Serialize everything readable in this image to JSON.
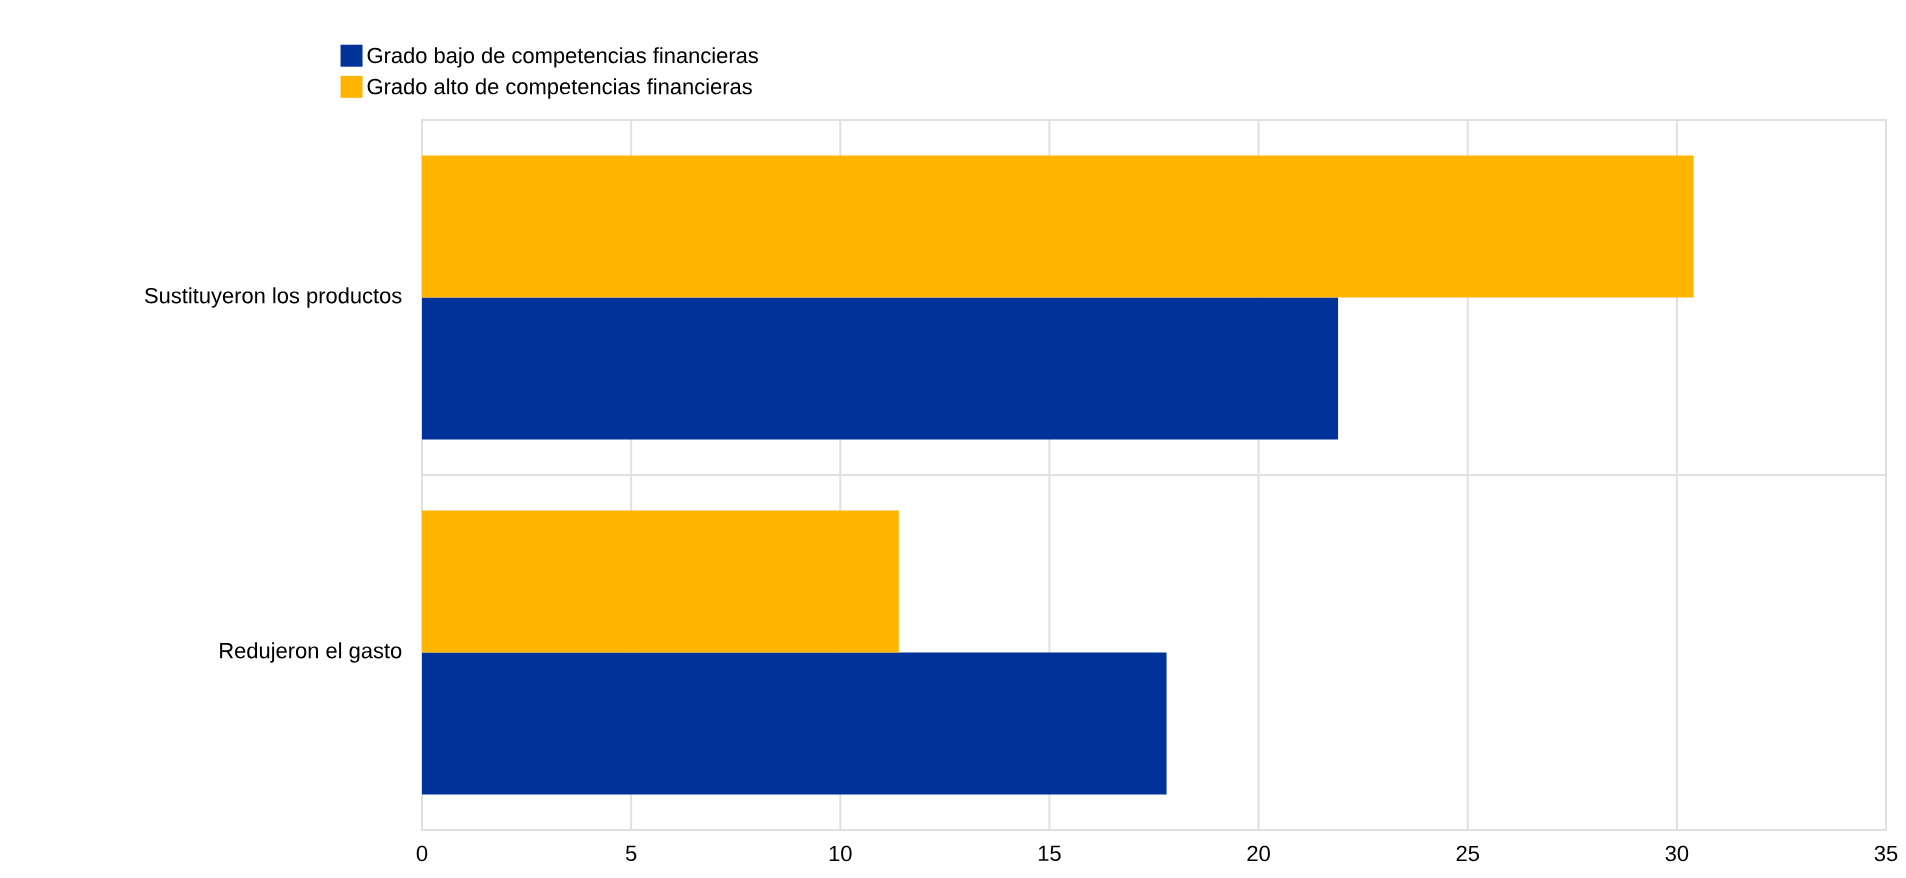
{
  "chart_data": {
    "type": "bar",
    "orientation": "horizontal",
    "categories": [
      "Sustituyeron los productos",
      "Redujeron el gasto"
    ],
    "series": [
      {
        "name": "Grado bajo de competencias financieras",
        "color": "#003299",
        "values": [
          21.9,
          17.8
        ]
      },
      {
        "name": "Grado alto de competencias financieras",
        "color": "#ffb400",
        "values": [
          30.4,
          11.4
        ]
      }
    ],
    "xlim": [
      0,
      35
    ],
    "xticks": [
      0,
      5,
      10,
      15,
      20,
      25,
      30,
      35
    ],
    "grid": true,
    "legend": "top"
  }
}
